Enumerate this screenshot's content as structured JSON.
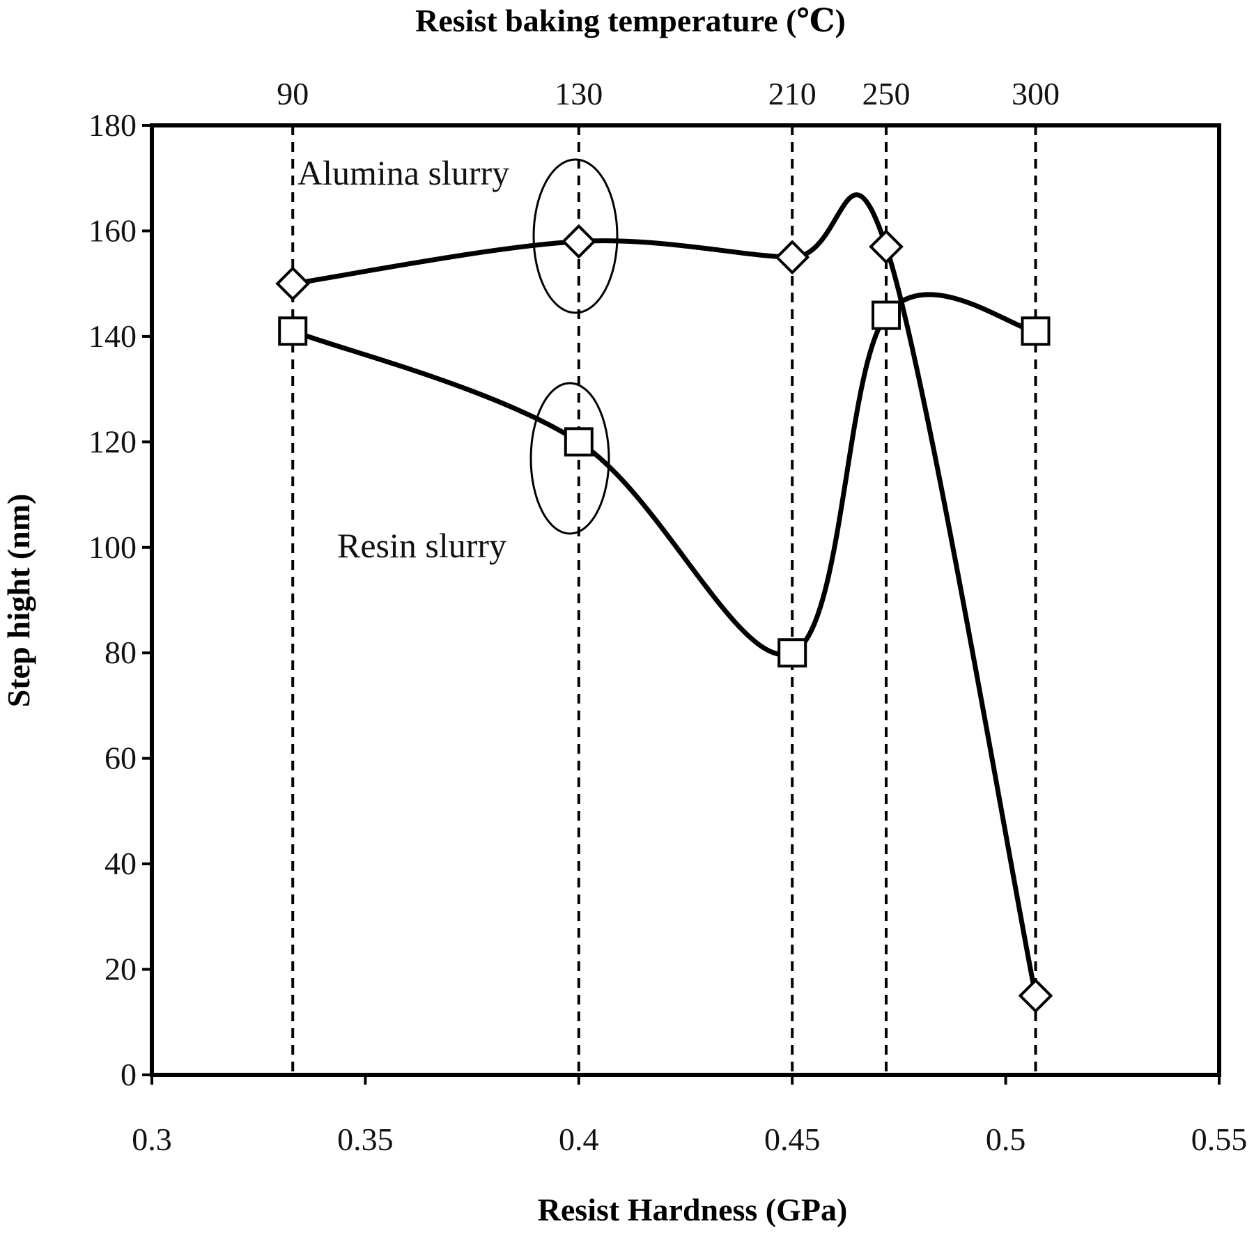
{
  "chart_data": {
    "type": "line",
    "title": "",
    "xlabel": "Resist Hardness (GPa)",
    "ylabel": "Step hight (nm)",
    "top_xlabel": "Resist baking temperature (℃)",
    "xlim": [
      0.3,
      0.55
    ],
    "ylim": [
      0,
      180
    ],
    "x_ticks": [
      "0.3",
      "0.35",
      "0.4",
      "0.45",
      "0.5",
      "0.55"
    ],
    "y_ticks": [
      "0",
      "20",
      "40",
      "60",
      "80",
      "100",
      "120",
      "140",
      "160",
      "180"
    ],
    "top_ticks": [
      {
        "x": 0.333,
        "label": "90"
      },
      {
        "x": 0.4,
        "label": "130"
      },
      {
        "x": 0.45,
        "label": "210"
      },
      {
        "x": 0.472,
        "label": "250"
      },
      {
        "x": 0.507,
        "label": "300"
      }
    ],
    "grid": false,
    "line_color": "#000000",
    "series": [
      {
        "name": "Alumina slurry",
        "marker": "diamond",
        "x": [
          0.333,
          0.4,
          0.45,
          0.472,
          0.507
        ],
        "values": [
          150,
          158,
          155,
          157,
          15
        ]
      },
      {
        "name": "Resin slurry",
        "marker": "square",
        "x": [
          0.333,
          0.4,
          0.45,
          0.472,
          0.507
        ],
        "values": [
          141,
          120,
          80,
          144,
          141
        ]
      }
    ],
    "annotations": [
      {
        "text": "Alumina slurry"
      },
      {
        "text": "Resin slurry"
      }
    ]
  }
}
